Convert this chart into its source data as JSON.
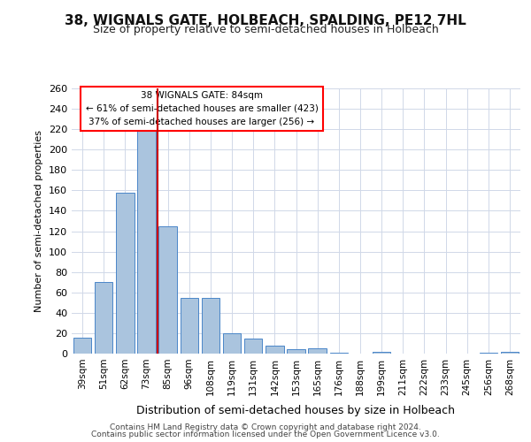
{
  "title": "38, WIGNALS GATE, HOLBEACH, SPALDING, PE12 7HL",
  "subtitle": "Size of property relative to semi-detached houses in Holbeach",
  "xlabel": "Distribution of semi-detached houses by size in Holbeach",
  "ylabel": "Number of semi-detached properties",
  "categories": [
    "39sqm",
    "51sqm",
    "62sqm",
    "73sqm",
    "85sqm",
    "96sqm",
    "108sqm",
    "119sqm",
    "131sqm",
    "142sqm",
    "153sqm",
    "165sqm",
    "176sqm",
    "188sqm",
    "199sqm",
    "211sqm",
    "222sqm",
    "233sqm",
    "245sqm",
    "256sqm",
    "268sqm"
  ],
  "values": [
    16,
    70,
    158,
    218,
    125,
    55,
    55,
    20,
    15,
    8,
    4,
    5,
    1,
    0,
    2,
    0,
    0,
    0,
    0,
    1,
    2
  ],
  "bar_color": "#aac4de",
  "bar_edge_color": "#4a86c8",
  "highlight_index": 4,
  "highlight_color": "#cc0000",
  "ylim": [
    0,
    260
  ],
  "yticks": [
    0,
    20,
    40,
    60,
    80,
    100,
    120,
    140,
    160,
    180,
    200,
    220,
    240,
    260
  ],
  "annotation_title": "38 WIGNALS GATE: 84sqm",
  "annotation_line1": "← 61% of semi-detached houses are smaller (423)",
  "annotation_line2": "37% of semi-detached houses are larger (256) →",
  "footnote1": "Contains HM Land Registry data © Crown copyright and database right 2024.",
  "footnote2": "Contains public sector information licensed under the Open Government Licence v3.0.",
  "background_color": "#ffffff",
  "grid_color": "#d0d8e8"
}
